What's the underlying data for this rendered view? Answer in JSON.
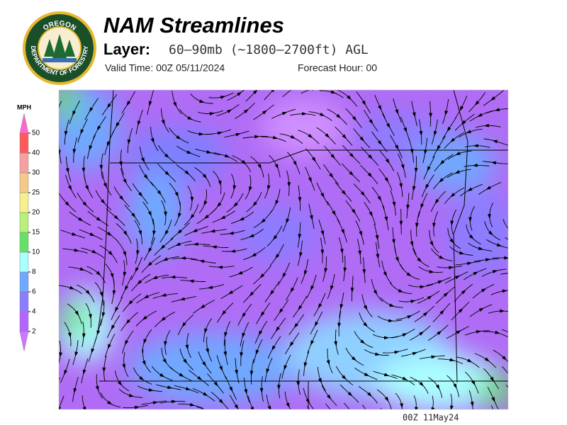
{
  "header": {
    "title": "NAM Streamlines",
    "layer_label": "Layer:",
    "layer": "60–90mb (~1800–2700ft) AGL",
    "valid_time": "Valid Time: 00Z 05/11/2024",
    "forecast_hour": "Forecast Hour: 00"
  },
  "logo": {
    "top_text": "OREGON",
    "bottom_text": "DEPARTMENT OF FORESTRY"
  },
  "colorbar": {
    "label": "MPH",
    "ticks": [
      2,
      4,
      6,
      8,
      10,
      15,
      20,
      25,
      30,
      40,
      50
    ],
    "colors": [
      "#cc77ff",
      "#b266ff",
      "#8c7dff",
      "#6fa8ff",
      "#aaffff",
      "#66e066",
      "#b8f07a",
      "#f5f08a",
      "#f5c98a",
      "#f5a0a0",
      "#ff5a5a",
      "#ff66cc"
    ]
  },
  "footer": {
    "timestamp": "00Z 11May24"
  }
}
